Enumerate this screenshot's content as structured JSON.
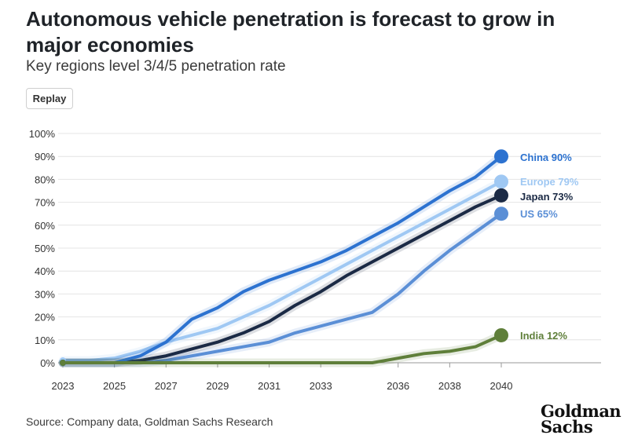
{
  "header": {
    "title": "Autonomous vehicle penetration is forecast to grow in major economies",
    "subtitle": "Key regions level 3/4/5 penetration rate",
    "replay_label": "Replay"
  },
  "footer": {
    "source": "Source: Company data, Goldman Sachs Research",
    "logo_line1": "Goldman",
    "logo_line2": "Sachs"
  },
  "chart_data": {
    "type": "line",
    "title": "Autonomous vehicle penetration is forecast to grow in major economies",
    "subtitle": "Key regions level 3/4/5 penetration rate",
    "xlabel": "",
    "ylabel": "",
    "x": [
      2023,
      2024,
      2025,
      2026,
      2027,
      2028,
      2029,
      2030,
      2031,
      2032,
      2033,
      2034,
      2035,
      2036,
      2037,
      2038,
      2039,
      2040
    ],
    "x_ticks": [
      "2023",
      "2025",
      "2027",
      "2029",
      "2031",
      "2033",
      "2036",
      "2038",
      "2040"
    ],
    "y_ticks": [
      "0%",
      "10%",
      "20%",
      "30%",
      "40%",
      "50%",
      "60%",
      "70%",
      "80%",
      "90%",
      "100%"
    ],
    "ylim": [
      0,
      100
    ],
    "grid": true,
    "series": [
      {
        "name": "Europe",
        "label": "Europe 79%",
        "color": "#9fc8f3",
        "values": [
          1,
          1,
          2,
          5,
          9,
          12,
          15,
          20,
          25,
          31,
          37,
          43,
          49,
          55,
          61,
          67,
          73,
          79
        ]
      },
      {
        "name": "US",
        "label": "US 65%",
        "color": "#5b8fd6",
        "values": [
          0,
          0,
          0,
          0,
          1,
          3,
          5,
          7,
          9,
          13,
          16,
          19,
          22,
          30,
          40,
          49,
          57,
          65
        ]
      },
      {
        "name": "Japan",
        "label": "Japan 73%",
        "color": "#1b2a45",
        "values": [
          0,
          0,
          0,
          1,
          3,
          6,
          9,
          13,
          18,
          25,
          31,
          38,
          44,
          50,
          56,
          62,
          68,
          73
        ]
      },
      {
        "name": "China",
        "label": "China 90%",
        "color": "#2c72d0",
        "values": [
          0,
          0,
          0,
          3,
          9,
          19,
          24,
          31,
          36,
          40,
          44,
          49,
          55,
          61,
          68,
          75,
          81,
          90
        ]
      },
      {
        "name": "India",
        "label": "India 12%",
        "color": "#5f7f3a",
        "values": [
          0,
          0,
          0,
          0,
          0,
          0,
          0,
          0,
          0,
          0,
          0,
          0,
          0,
          2,
          4,
          5,
          7,
          12
        ]
      }
    ],
    "legend": "inline at line ends"
  }
}
